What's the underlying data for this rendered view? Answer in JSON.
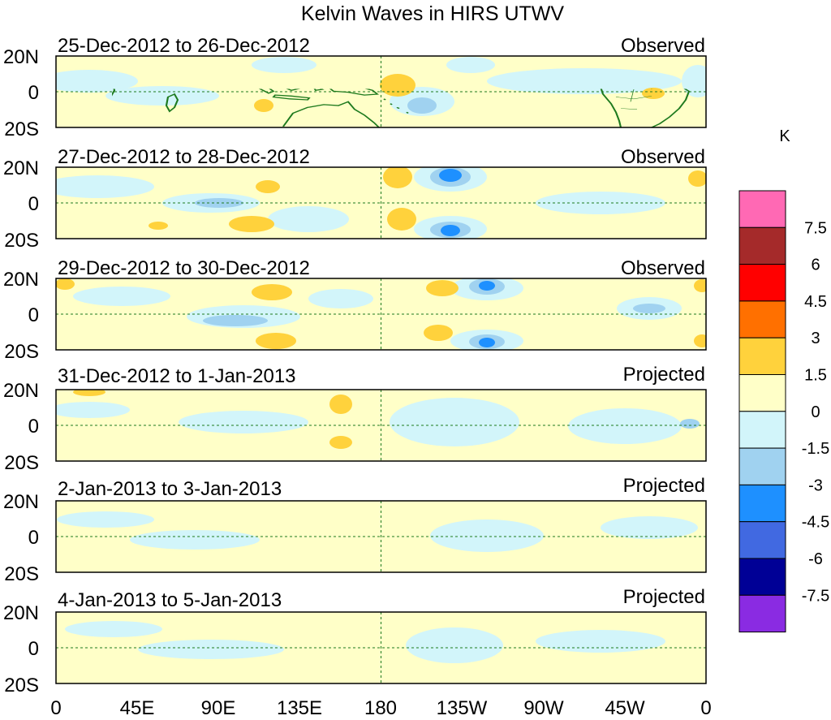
{
  "title": "Kelvin Waves in HIRS UTWV",
  "panels": [
    {
      "date_range": "25-Dec-2012 to 26-Dec-2012",
      "kind": "Observed"
    },
    {
      "date_range": "27-Dec-2012 to 28-Dec-2012",
      "kind": "Observed"
    },
    {
      "date_range": "29-Dec-2012 to 30-Dec-2012",
      "kind": "Observed"
    },
    {
      "date_range": "31-Dec-2012 to 1-Jan-2013",
      "kind": "Projected"
    },
    {
      "date_range": "2-Jan-2013 to 3-Jan-2013",
      "kind": "Projected"
    },
    {
      "date_range": "4-Jan-2013 to 5-Jan-2013",
      "kind": "Projected"
    }
  ],
  "lat_labels": [
    "20N",
    "0",
    "20S"
  ],
  "lon_labels": [
    "0",
    "45E",
    "90E",
    "135E",
    "180",
    "135W",
    "90W",
    "45W",
    "0"
  ],
  "colorbar": {
    "unit": "K",
    "tick_labels": [
      "7.5",
      "6",
      "4.5",
      "3",
      "1.5",
      "0",
      "-1.5",
      "-3",
      "-4.5",
      "-6",
      "-7.5"
    ],
    "colors_top_to_bottom": [
      "#ff69b4",
      "#a52a2a",
      "#ff0000",
      "#ff7000",
      "#ffd23c",
      "#ffffc8",
      "#d2f5fa",
      "#a0d2f0",
      "#1e90ff",
      "#4169e1",
      "#000096",
      "#8a2be2"
    ]
  },
  "palette": {
    "positive_1": "#ffffc8",
    "positive_2": "#ffd23c",
    "negative_1": "#d2f5fa",
    "negative_2": "#a0d2f0",
    "negative_3": "#1e90ff",
    "coast": "#1e7a1e"
  }
}
